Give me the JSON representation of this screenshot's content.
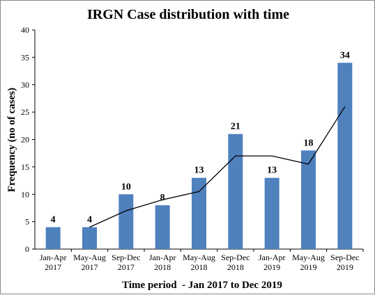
{
  "chart_data": {
    "type": "bar",
    "title": "IRGN Case distribution with time",
    "xlabel": "Time period  - Jan 2017 to Dec 2019",
    "ylabel": "Frequency (no of cases)",
    "ylim": [
      0,
      40
    ],
    "yticks": [
      0,
      5,
      10,
      15,
      20,
      25,
      30,
      35,
      40
    ],
    "categories": [
      [
        "Jan-Apr",
        "2017"
      ],
      [
        "May-Aug",
        "2017"
      ],
      [
        "Sep-Dec",
        "2017"
      ],
      [
        "Jan-Apr",
        "2018"
      ],
      [
        "May-Aug",
        "2018"
      ],
      [
        "Sep-Dec",
        "2018"
      ],
      [
        "Jan-Apr",
        "2019"
      ],
      [
        "May-Aug",
        "2019"
      ],
      [
        "Sep-Dec",
        "2019"
      ]
    ],
    "values": [
      4,
      4,
      10,
      8,
      13,
      21,
      13,
      18,
      34
    ],
    "trendline": {
      "type": "moving-average",
      "period": 2,
      "values": [
        4,
        7,
        9,
        10.5,
        17,
        17,
        15.5,
        26
      ]
    },
    "bar_color": "#4f81bd",
    "line_color": "#000000",
    "grid": false,
    "legend": "none"
  }
}
